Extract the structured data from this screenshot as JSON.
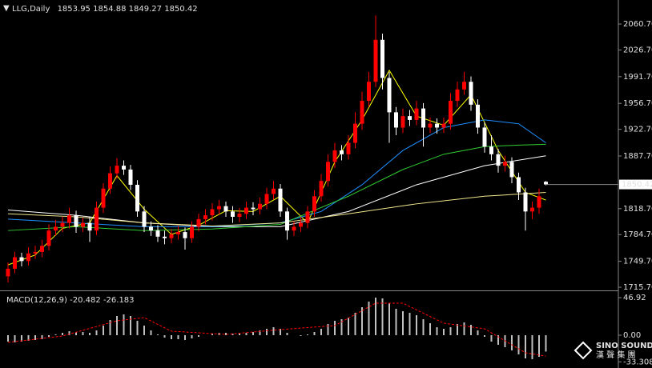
{
  "chart_data": [
    {
      "type": "candlestick",
      "symbol": "LLG,Daily",
      "up_color": "#ff0000",
      "down_color": "#ffffff",
      "open": [
        1730,
        1740,
        1755,
        1750,
        1760,
        1762,
        1770,
        1790,
        1795,
        1800,
        1810,
        1795,
        1800,
        1790,
        1820,
        1845,
        1865,
        1875,
        1870,
        1850,
        1815,
        1795,
        1790,
        1782,
        1780,
        1785,
        1788,
        1780,
        1795,
        1805,
        1810,
        1818,
        1822,
        1815,
        1808,
        1812,
        1820,
        1818,
        1825,
        1838,
        1845,
        1815,
        1790,
        1795,
        1800,
        1815,
        1835,
        1855,
        1880,
        1895,
        1890,
        1905,
        1930,
        1960,
        1985,
        2040,
        1990,
        1945,
        1925,
        1940,
        1935,
        1950,
        1925,
        1930,
        1925,
        1930,
        1960,
        1975,
        1985,
        1955,
        1925,
        1900,
        1890,
        1875,
        1880,
        1860,
        1840,
        1815,
        1820,
        1853.95
      ],
      "high": [
        1748,
        1762,
        1761,
        1768,
        1770,
        1778,
        1798,
        1804,
        1808,
        1820,
        1816,
        1807,
        1808,
        1828,
        1852,
        1874,
        1885,
        1882,
        1876,
        1856,
        1822,
        1802,
        1797,
        1790,
        1792,
        1796,
        1794,
        1802,
        1812,
        1818,
        1826,
        1830,
        1828,
        1822,
        1820,
        1828,
        1827,
        1833,
        1846,
        1855,
        1851,
        1820,
        1802,
        1808,
        1822,
        1843,
        1864,
        1890,
        1905,
        1902,
        1915,
        1945,
        1972,
        1998,
        2072,
        2048,
        1998,
        1952,
        1950,
        1948,
        1960,
        1957,
        1938,
        1937,
        1938,
        1970,
        1985,
        1998,
        1992,
        1962,
        1932,
        1915,
        1897,
        1888,
        1886,
        1866,
        1846,
        1828,
        1845,
        1854.88
      ],
      "low": [
        1722,
        1734,
        1743,
        1744,
        1753,
        1755,
        1764,
        1783,
        1788,
        1793,
        1787,
        1788,
        1775,
        1784,
        1813,
        1838,
        1858,
        1863,
        1843,
        1808,
        1788,
        1783,
        1775,
        1772,
        1773,
        1778,
        1765,
        1774,
        1789,
        1798,
        1803,
        1811,
        1808,
        1800,
        1801,
        1805,
        1810,
        1811,
        1818,
        1831,
        1808,
        1778,
        1783,
        1788,
        1793,
        1808,
        1828,
        1848,
        1872,
        1882,
        1883,
        1898,
        1922,
        1952,
        1978,
        1975,
        1905,
        1915,
        1918,
        1927,
        1928,
        1900,
        1918,
        1917,
        1918,
        1922,
        1952,
        1968,
        1947,
        1917,
        1892,
        1882,
        1866,
        1867,
        1852,
        1830,
        1790,
        1805,
        1812,
        1849.27
      ],
      "close": [
        1740,
        1755,
        1750,
        1760,
        1762,
        1770,
        1790,
        1795,
        1800,
        1810,
        1795,
        1800,
        1790,
        1820,
        1845,
        1865,
        1875,
        1870,
        1850,
        1815,
        1795,
        1790,
        1782,
        1780,
        1785,
        1788,
        1780,
        1795,
        1805,
        1810,
        1818,
        1822,
        1815,
        1808,
        1812,
        1820,
        1818,
        1825,
        1838,
        1845,
        1815,
        1790,
        1795,
        1800,
        1815,
        1835,
        1855,
        1880,
        1895,
        1890,
        1905,
        1930,
        1960,
        1985,
        2040,
        1990,
        1945,
        1925,
        1940,
        1935,
        1950,
        1925,
        1930,
        1925,
        1930,
        1960,
        1975,
        1985,
        1955,
        1925,
        1900,
        1890,
        1875,
        1880,
        1860,
        1840,
        1815,
        1820,
        1835,
        1850.42
      ],
      "lines": [
        {
          "color": "#ffff00",
          "x": [
            0,
            4,
            8,
            12,
            16,
            20,
            24,
            28,
            32,
            36,
            40,
            44,
            48,
            52,
            56,
            60,
            64,
            68,
            72,
            76,
            79
          ],
          "values": [
            1745,
            1758,
            1793,
            1800,
            1862,
            1818,
            1785,
            1797,
            1816,
            1815,
            1835,
            1800,
            1880,
            1935,
            2000,
            1940,
            1928,
            1968,
            1895,
            1840,
            1830
          ]
        },
        {
          "color": "#ffffff",
          "x": [
            0,
            10,
            20,
            30,
            40,
            50,
            60,
            70,
            79
          ],
          "values": [
            1817,
            1810,
            1800,
            1795,
            1795,
            1815,
            1850,
            1875,
            1888
          ]
        },
        {
          "color": "#1e90ff",
          "x": [
            0,
            10,
            20,
            30,
            40,
            46,
            52,
            58,
            64,
            70,
            75,
            79
          ],
          "values": [
            1805,
            1800,
            1795,
            1795,
            1800,
            1815,
            1850,
            1895,
            1925,
            1935,
            1930,
            1905
          ]
        },
        {
          "color": "#32cd32",
          "x": [
            0,
            10,
            20,
            30,
            40,
            50,
            58,
            64,
            70,
            75,
            79
          ],
          "values": [
            1790,
            1795,
            1790,
            1792,
            1798,
            1835,
            1870,
            1890,
            1900,
            1902,
            1903
          ]
        },
        {
          "color": "#f0e68c",
          "x": [
            0,
            10,
            20,
            30,
            40,
            50,
            60,
            70,
            79
          ],
          "values": [
            1812,
            1808,
            1800,
            1796,
            1800,
            1812,
            1825,
            1835,
            1840
          ]
        }
      ],
      "ylim": [
        1712.6,
        2090.1
      ],
      "yticks": [
        {
          "value": 2060.7,
          "label": "2060.70"
        },
        {
          "value": 2026.7,
          "label": "2026.70"
        },
        {
          "value": 1991.7,
          "label": "1991.70"
        },
        {
          "value": 1956.7,
          "label": "1956.70"
        },
        {
          "value": 1922.7,
          "label": "1922.70"
        },
        {
          "value": 1887.7,
          "label": "1887.70"
        },
        {
          "value": 1818.7,
          "label": "1818.70"
        },
        {
          "value": 1784.7,
          "label": "1784.70"
        },
        {
          "value": 1749.7,
          "label": "1749.70"
        },
        {
          "value": 1715.7,
          "label": "1715.70"
        }
      ],
      "grid": false
    },
    {
      "type": "macd",
      "name": "MACD(12,26,9)",
      "color": "#c0c0c0",
      "values": [
        -8,
        -9,
        -8,
        -7,
        -6,
        -5,
        -2,
        1,
        3,
        5,
        4,
        4,
        3,
        6,
        12,
        19,
        24,
        26,
        24,
        18,
        12,
        6,
        1,
        -3,
        -5,
        -5,
        -6,
        -4,
        -2,
        0,
        2,
        3,
        3,
        2,
        2,
        3,
        4,
        6,
        8,
        10,
        8,
        3,
        0,
        -1,
        1,
        4,
        8,
        14,
        18,
        20,
        22,
        28,
        35,
        42,
        47,
        46,
        40,
        33,
        30,
        28,
        25,
        20,
        15,
        10,
        8,
        10,
        14,
        16,
        13,
        6,
        -2,
        -8,
        -12,
        -15,
        -19,
        -24,
        -29,
        -30,
        -27,
        -20.482
      ],
      "signal": {
        "color": "#ff0000",
        "x": [
          0,
          8,
          16,
          20,
          24,
          32,
          40,
          48,
          54,
          58,
          64,
          70,
          76,
          79
        ],
        "values": [
          -9,
          -1,
          18,
          22,
          5,
          1,
          7,
          12,
          40,
          40,
          15,
          8,
          -22,
          -26.183
        ]
      },
      "ylim": [
        -41,
        54
      ],
      "yticks": [
        46.92,
        {
          "value": 0,
          "label": "0.00"
        },
        -33.308
      ]
    }
  ],
  "logo": {
    "text": "SINO SOUND",
    "subtext": "漢 聲 集 團"
  }
}
